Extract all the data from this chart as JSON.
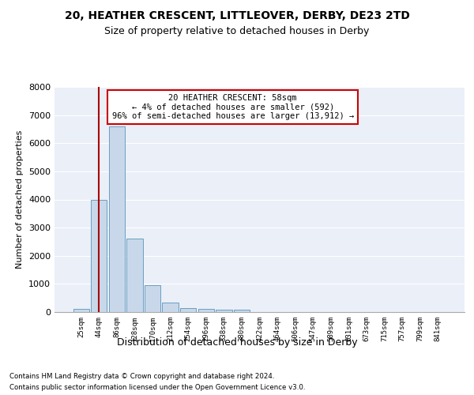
{
  "title1": "20, HEATHER CRESCENT, LITTLEOVER, DERBY, DE23 2TD",
  "title2": "Size of property relative to detached houses in Derby",
  "xlabel": "Distribution of detached houses by size in Derby",
  "ylabel": "Number of detached properties",
  "footnote1": "Contains HM Land Registry data © Crown copyright and database right 2024.",
  "footnote2": "Contains public sector information licensed under the Open Government Licence v3.0.",
  "annotation_title": "20 HEATHER CRESCENT: 58sqm",
  "annotation_line1": "← 4% of detached houses are smaller (592)",
  "annotation_line2": "96% of semi-detached houses are larger (13,912) →",
  "bin_labels": [
    "25sqm",
    "44sqm",
    "86sqm",
    "128sqm",
    "170sqm",
    "212sqm",
    "254sqm",
    "296sqm",
    "338sqm",
    "380sqm",
    "422sqm",
    "464sqm",
    "506sqm",
    "547sqm",
    "589sqm",
    "631sqm",
    "673sqm",
    "715sqm",
    "757sqm",
    "799sqm",
    "841sqm"
  ],
  "bar_values": [
    100,
    4000,
    6600,
    2620,
    950,
    330,
    150,
    110,
    75,
    75,
    0,
    0,
    0,
    0,
    0,
    0,
    0,
    0,
    0,
    0,
    0
  ],
  "bar_color": "#c8d8ea",
  "bar_edge_color": "#6a9fc0",
  "background_color": "#eaeff8",
  "grid_color": "#ffffff",
  "vline_color": "#aa0000",
  "annotation_box_edgecolor": "#cc0000",
  "ylim_max": 8000,
  "yticks": [
    0,
    1000,
    2000,
    3000,
    4000,
    5000,
    6000,
    7000,
    8000
  ],
  "vline_pos": 1.0
}
